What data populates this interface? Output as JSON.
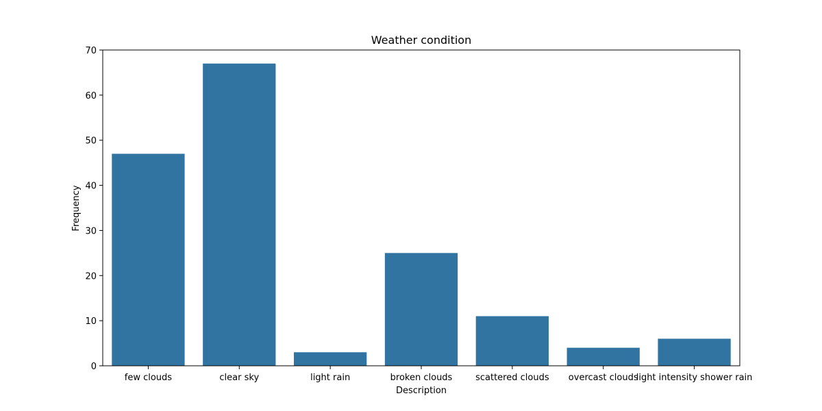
{
  "chart_data": {
    "type": "bar",
    "title": "Weather condition",
    "xlabel": "Description",
    "ylabel": "Frequency",
    "categories": [
      "few clouds",
      "clear sky",
      "light rain",
      "broken clouds",
      "scattered clouds",
      "overcast clouds",
      "light intensity shower rain"
    ],
    "values": [
      47,
      67,
      3,
      25,
      11,
      4,
      6
    ],
    "ylim": [
      0,
      70
    ],
    "yticks": [
      0,
      10,
      20,
      30,
      40,
      50,
      60,
      70
    ],
    "grid": false,
    "bar_color": "#3274a1"
  }
}
